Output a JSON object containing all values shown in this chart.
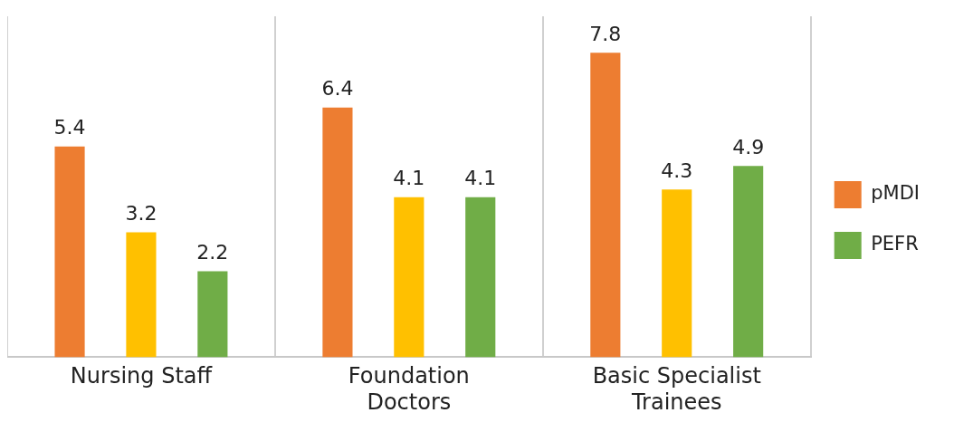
{
  "chart_data": {
    "type": "bar",
    "categories": [
      "Nursing Staff",
      "Foundation Doctors",
      "Basic Specialist Trainees"
    ],
    "series": [
      {
        "name": "pMDI",
        "color": "#ed7d31",
        "values": [
          5.4,
          6.4,
          7.8
        ]
      },
      {
        "color": "#ffc000",
        "values": [
          3.2,
          4.1,
          4.3
        ]
      },
      {
        "name": "PEFR",
        "color": "#70ad47",
        "values": [
          2.2,
          4.1,
          4.9
        ]
      }
    ],
    "data_labels": true,
    "grid": "x",
    "legend": "right"
  }
}
